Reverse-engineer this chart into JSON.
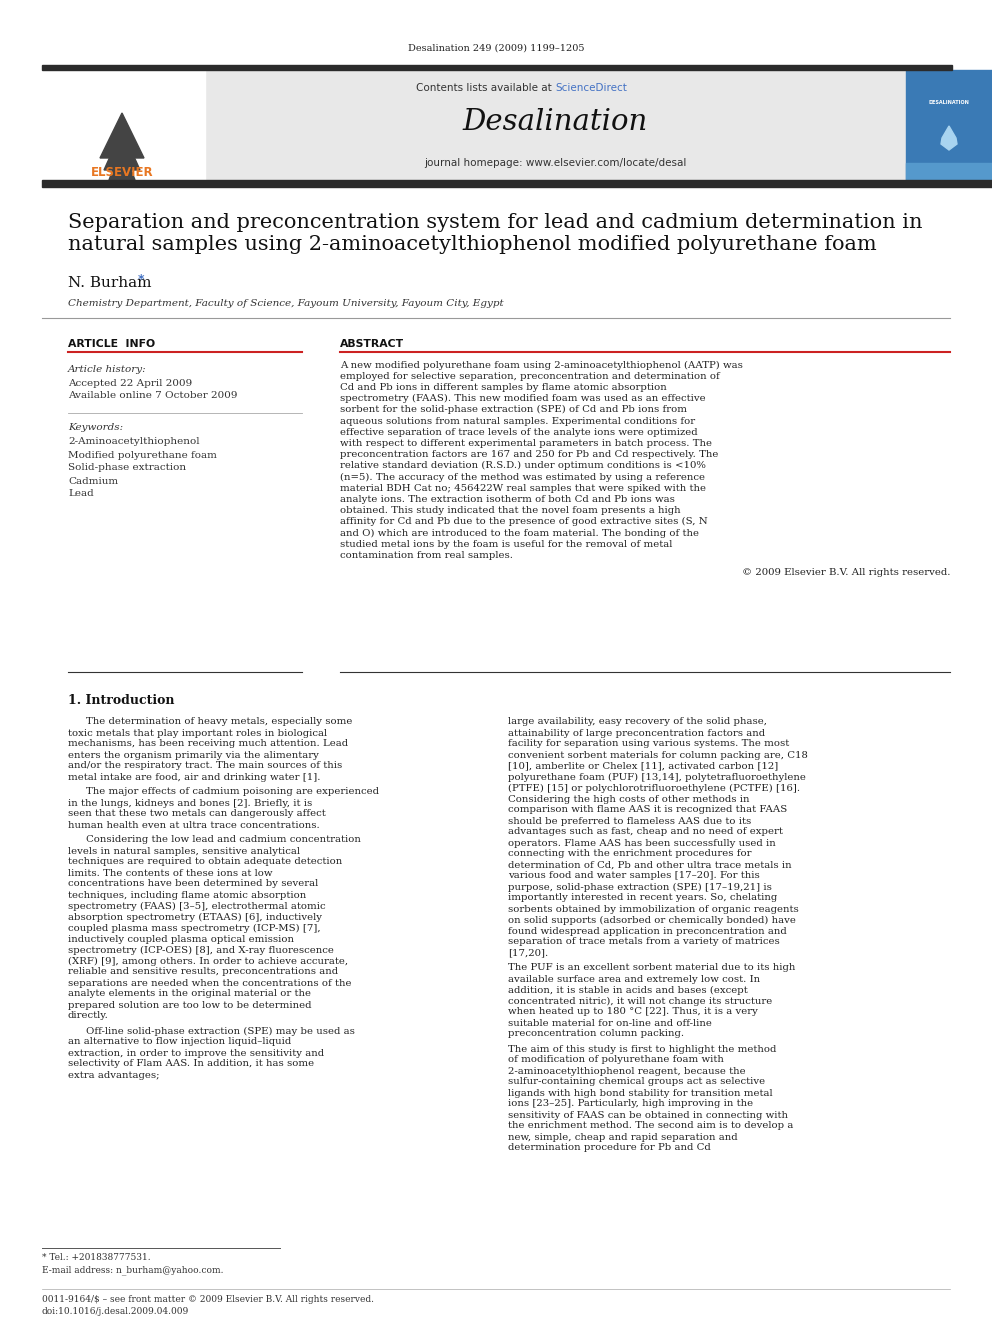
{
  "page_background": "#ffffff",
  "header_citation": "Desalination 249 (2009) 1199–1205",
  "journal_name": "Desalination",
  "contents_text": "Contents lists available at ScienceDirect",
  "sciencedirect_color": "#4472c4",
  "journal_homepage": "journal homepage: www.elsevier.com/locate/desal",
  "header_box_color": "#e8e8e8",
  "top_bar_color": "#2b2b2b",
  "article_title_line1": "Separation and preconcentration system for lead and cadmium determination in",
  "article_title_line2": "natural samples using 2-aminoacetylthiophenol modified polyurethane foam",
  "author": "N. Burham",
  "author_star_color": "#4472c4",
  "affiliation": "Chemistry Department, Faculty of Science, Fayoum University, Fayoum City, Egypt",
  "section_article_info": "ARTICLE  INFO",
  "section_abstract": "ABSTRACT",
  "article_history_label": "Article history:",
  "accepted_date": "Accepted 22 April 2009",
  "available_online": "Available online 7 October 2009",
  "keywords_label": "Keywords:",
  "keywords": [
    "2-Aminoacetylthiophenol",
    "Modified polyurethane foam",
    "Solid-phase extraction",
    "Cadmium",
    "Lead"
  ],
  "abstract_text": "A new modified polyurethane foam using 2-aminoacetylthiophenol (AATP) was employed for selective separation, preconcentration and determination of Cd and Pb ions in different samples by flame atomic absorption spectrometry (FAAS). This new modified foam was used as an effective sorbent for the solid-phase extraction (SPE) of Cd and Pb ions from aqueous solutions from natural samples. Experimental conditions for effective separation of trace levels of the analyte ions were optimized with respect to different experimental parameters in batch process. The preconcentration factors are 167 and 250 for Pb and Cd respectively. The relative standard deviation (R.S.D.) under optimum conditions is <10% (n=5). The accuracy of the method was estimated by using a reference material BDH Cat no; 456422W real samples that were spiked with the analyte ions. The extraction isotherm of both Cd and Pb ions was obtained. This study indicated that the novel foam presents a high affinity for Cd and Pb due to the presence of good extractive sites (S, N and O) which are introduced to the foam material. The bonding of the studied metal ions by the foam is useful for the removal of metal contamination from real samples.",
  "copyright": "© 2009 Elsevier B.V. All rights reserved.",
  "section1_title": "1. Introduction",
  "intro_col1_p1": "The determination of heavy metals, especially some toxic metals that play important roles in biological mechanisms, has been receiving much attention. Lead enters the organism primarily via the alimentary and/or the respiratory tract. The main sources of this metal intake are food, air and drinking water [1].",
  "intro_col1_p2": "The major effects of cadmium poisoning are experienced in the lungs, kidneys and bones [2]. Briefly, it is seen that these two metals can dangerously affect human health even at ultra trace concentrations.",
  "intro_col1_p3": "Considering the low lead and cadmium concentration levels in natural samples, sensitive analytical techniques are required to obtain adequate detection limits. The contents of these ions at low concentrations have been determined by several techniques, including flame atomic absorption spectrometry (FAAS) [3–5], electrothermal atomic absorption spectrometry (ETAAS) [6], inductively coupled plasma mass spectrometry (ICP-MS) [7], inductively coupled plasma optical emission spectrometry (ICP-OES) [8], and X-ray fluorescence (XRF) [9], among others. In order to achieve accurate, reliable and sensitive results, preconcentrations and separations are needed when the concentrations of the analyte elements in the original material or the prepared solution are too low to be determined directly.",
  "intro_col1_p4": "Off-line solid-phase extraction (SPE) may be used as an alternative to flow injection liquid–liquid extraction, in order to improve the sensitivity and selectivity of Flam AAS. In addition, it has some extra advantages;",
  "intro_col2_p1": "large availability, easy recovery of the solid phase, attainability of large preconcentration factors and facility for separation using various systems. The most convenient sorbent materials for column packing are, C18 [10], amberlite or Chelex [11], activated carbon [12] polyurethane foam (PUF) [13,14], polytetrafluoroethylene (PTFE) [15] or polychlorotrifluoroethylene (PCTFE) [16]. Considering the high costs of other methods in comparison with flame AAS it is recognized that FAAS should be preferred to flameless AAS due to its advantages such as fast, cheap and no need of expert operators. Flame AAS has been successfully used in connecting with the enrichment procedures for determination of Cd, Pb and other ultra trace metals in various food and water samples [17–20]. For this purpose, solid-phase extraction (SPE) [17–19,21] is importantly interested in recent years. So, chelating sorbents obtained by immobilization of organic reagents on solid supports (adsorbed or chemically bonded) have found widespread application in preconcentration and separation of trace metals from a variety of matrices [17,20].",
  "intro_col2_p2": "The PUF is an excellent sorbent material due to its high available surface area and extremely low cost. In addition, it is stable in acids and bases (except concentrated nitric), it will not change its structure when heated up to 180 °C [22]. Thus, it is a very suitable material for on-line and off-line preconcentration column packing.",
  "intro_col2_p3": "The aim of this study is first to highlight the method of modification of polyurethane foam with 2-aminoacetylthiophenol reagent, because the sulfur-containing chemical groups act as selective ligands with high bond stability for transition metal ions [23–25]. Particularly, high improving in the sensitivity of FAAS can be obtained in connecting with the enrichment method. The second aim is to develop a new, simple, cheap and rapid separation and determination procedure for Pb and Cd",
  "footnote_tel": "* Tel.: +201838777531.",
  "footnote_email": "E-mail address: n_burham@yahoo.com.",
  "footer_line1": "0011-9164/$ – see front matter © 2009 Elsevier B.V. All rights reserved.",
  "footer_line2": "doi:10.1016/j.desal.2009.04.009"
}
